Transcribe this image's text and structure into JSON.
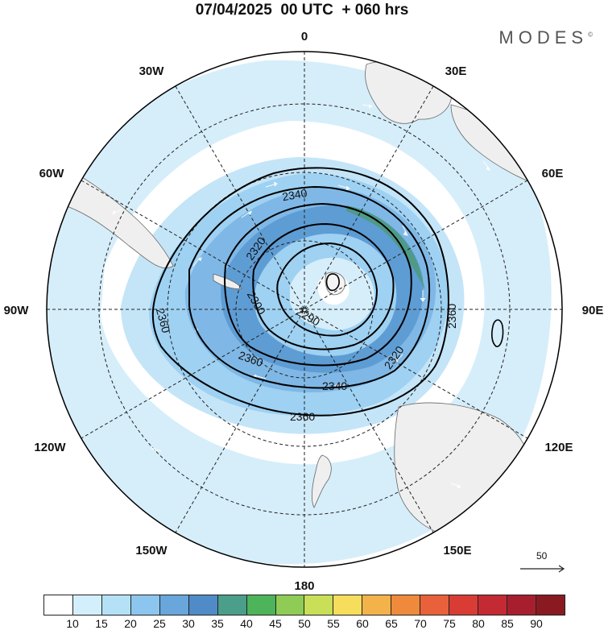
{
  "title": "07/04/2025  00 UTC  + 060 hrs",
  "brand": "MODES",
  "brand_mark": "©",
  "longitude_labels": {
    "0": "0",
    "30E": "30E",
    "60E": "60E",
    "90E": "90E",
    "120E": "120E",
    "150E": "150E",
    "180": "180",
    "150W": "150W",
    "120W": "120W",
    "90W": "90W",
    "60W": "60W",
    "30W": "30W"
  },
  "contour_labels": [
    "2340",
    "2320",
    "2300",
    "2290",
    "2320",
    "2340",
    "2360",
    "2360",
    "2360"
  ],
  "vector_reference": "50",
  "colorbar": {
    "colors": [
      "#ffffff",
      "#d4effc",
      "#b5e1f7",
      "#8cc6ee",
      "#68a6db",
      "#4f8cc7",
      "#4a9e8a",
      "#4db45a",
      "#8fcc56",
      "#c9df57",
      "#f7dd5c",
      "#f4b24b",
      "#ef8a3c",
      "#e8613a",
      "#d93c34",
      "#c42a33",
      "#a71f2e",
      "#8a1a22"
    ],
    "ticks": [
      "10",
      "15",
      "20",
      "25",
      "30",
      "35",
      "40",
      "45",
      "50",
      "55",
      "60",
      "65",
      "70",
      "75",
      "80",
      "85",
      "90"
    ]
  }
}
